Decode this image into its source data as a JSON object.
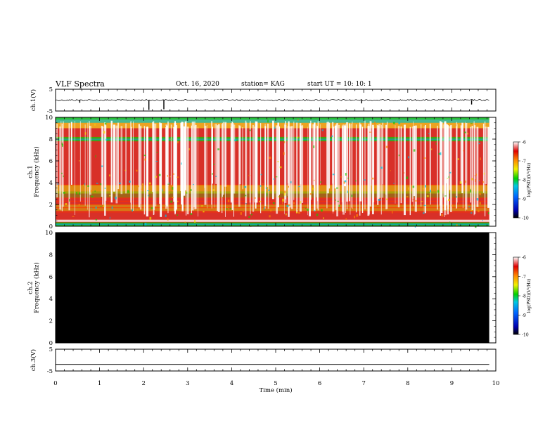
{
  "header": {
    "title": "VLF Spectra",
    "date": "Oct. 16, 2020",
    "station": "station= KAG",
    "start_time": "start  UT =   10: 10: 1"
  },
  "chart_data": [
    {
      "type": "line",
      "ylabel": "ch.1(V)",
      "ylim": [
        -5,
        5
      ],
      "yticks": [
        "5",
        "-5"
      ],
      "description": "waveform trace near 0 V with occasional negative spikes",
      "baseline": 0,
      "spikes_min": [
        0.55,
        2.12,
        2.46,
        6.95,
        9.45
      ],
      "spike_values": [
        -1.2,
        -4.5,
        -4.2,
        -1.5,
        -2.0
      ],
      "xlim": [
        0,
        10
      ]
    },
    {
      "type": "heatmap",
      "ylabel": "ch.1\nFrequency (kHz)",
      "ylim": [
        0,
        10
      ],
      "yticks": [
        "0",
        "2",
        "4",
        "6",
        "8",
        "10"
      ],
      "xlim": [
        0,
        10
      ],
      "colorbar": {
        "label": "log(PSD)(V²/Hz)",
        "range": [
          -10,
          -6
        ],
        "ticks": [
          "-6",
          "-7",
          "-8",
          "-9",
          "-10"
        ]
      }
    },
    {
      "type": "heatmap",
      "ylabel": "ch.2\nFrequency (kHz)",
      "ylim": [
        0,
        10
      ],
      "yticks": [
        "0",
        "2",
        "4",
        "6",
        "8",
        "10"
      ],
      "xlim": [
        0,
        10
      ],
      "fill": "#000000",
      "colorbar": {
        "label": "log(PSD)(V²/Hz)",
        "range": [
          -10,
          -6
        ],
        "ticks": [
          "-6",
          "-7",
          "-8",
          "-9",
          "-10"
        ]
      }
    },
    {
      "type": "line",
      "ylabel": "ch.3(V)",
      "ylim": [
        -5,
        5
      ],
      "yticks": [
        "5",
        "-5"
      ],
      "baseline": -2,
      "xlim": [
        0,
        10
      ]
    }
  ],
  "xaxis": {
    "label": "Time  (min)",
    "ticks": [
      "0",
      "1",
      "2",
      "3",
      "4",
      "5",
      "6",
      "7",
      "8",
      "9",
      "10"
    ],
    "data_end_min": 9.85
  },
  "colors": {
    "spectrogram_bg": "#d83028",
    "ch2_fill": "#000000"
  }
}
